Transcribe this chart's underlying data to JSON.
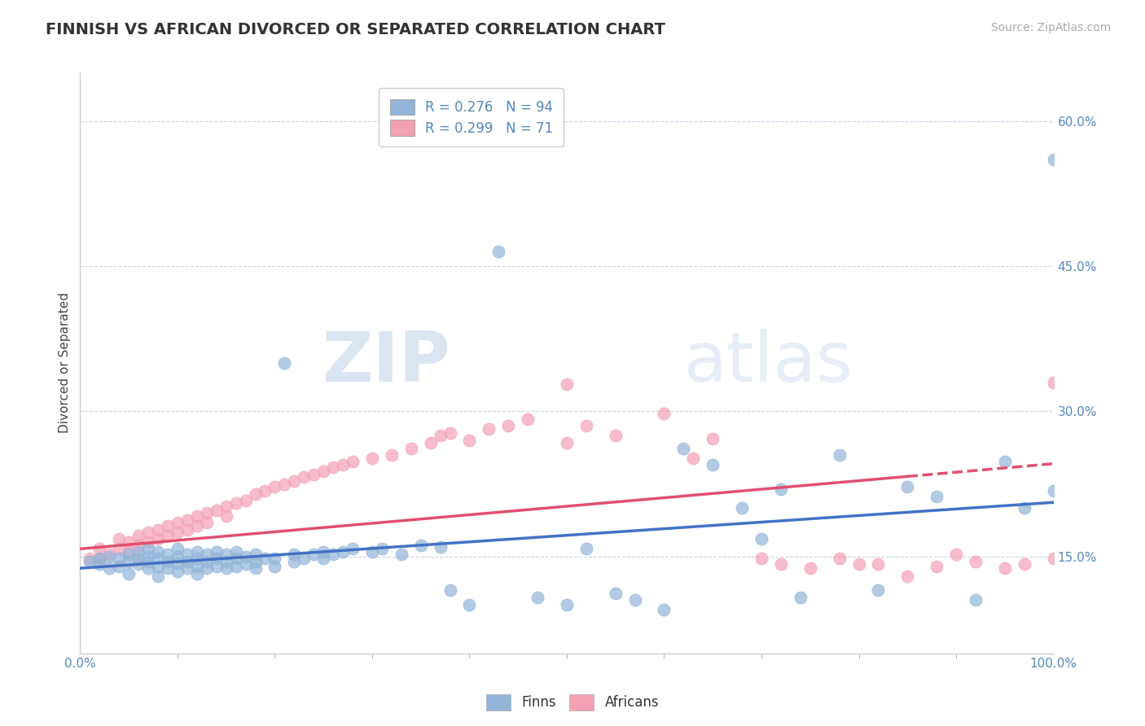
{
  "title": "FINNISH VS AFRICAN DIVORCED OR SEPARATED CORRELATION CHART",
  "source_text": "Source: ZipAtlas.com",
  "ylabel": "Divorced or Separated",
  "xlabel": "",
  "xlim": [
    0.0,
    1.0
  ],
  "ylim": [
    0.05,
    0.65
  ],
  "xtick_labels": [
    "0.0%",
    "100.0%"
  ],
  "ytick_labels": [
    "15.0%",
    "30.0%",
    "45.0%",
    "60.0%"
  ],
  "ytick_values": [
    0.15,
    0.3,
    0.45,
    0.6
  ],
  "legend_finns": "R = 0.276   N = 94",
  "legend_africans": "R = 0.299   N = 71",
  "finns_color": "#92b4d8",
  "africans_color": "#f4a0b5",
  "finns_line_color": "#4472c4",
  "africans_line_color": "#e05070",
  "background_color": "#ffffff",
  "grid_color": "#c8d4e8",
  "watermark_zip": "ZIP",
  "watermark_atlas": "atlas",
  "finns_x": [
    0.01,
    0.02,
    0.02,
    0.03,
    0.03,
    0.04,
    0.04,
    0.05,
    0.05,
    0.05,
    0.06,
    0.06,
    0.06,
    0.07,
    0.07,
    0.07,
    0.07,
    0.08,
    0.08,
    0.08,
    0.08,
    0.09,
    0.09,
    0.09,
    0.1,
    0.1,
    0.1,
    0.1,
    0.11,
    0.11,
    0.11,
    0.12,
    0.12,
    0.12,
    0.12,
    0.13,
    0.13,
    0.13,
    0.14,
    0.14,
    0.14,
    0.15,
    0.15,
    0.15,
    0.16,
    0.16,
    0.16,
    0.17,
    0.17,
    0.18,
    0.18,
    0.18,
    0.19,
    0.2,
    0.2,
    0.21,
    0.22,
    0.22,
    0.23,
    0.24,
    0.25,
    0.25,
    0.26,
    0.27,
    0.28,
    0.3,
    0.31,
    0.33,
    0.35,
    0.37,
    0.38,
    0.4,
    0.43,
    0.47,
    0.5,
    0.52,
    0.55,
    0.57,
    0.6,
    0.62,
    0.65,
    0.68,
    0.7,
    0.72,
    0.74,
    0.78,
    0.82,
    0.85,
    0.88,
    0.92,
    0.95,
    0.97,
    1.0,
    1.0
  ],
  "finns_y": [
    0.145,
    0.142,
    0.148,
    0.138,
    0.15,
    0.14,
    0.148,
    0.132,
    0.145,
    0.152,
    0.142,
    0.148,
    0.155,
    0.138,
    0.145,
    0.15,
    0.158,
    0.13,
    0.14,
    0.148,
    0.155,
    0.138,
    0.145,
    0.152,
    0.135,
    0.143,
    0.15,
    0.158,
    0.138,
    0.145,
    0.152,
    0.132,
    0.14,
    0.148,
    0.155,
    0.138,
    0.145,
    0.152,
    0.14,
    0.148,
    0.155,
    0.138,
    0.145,
    0.152,
    0.14,
    0.148,
    0.155,
    0.142,
    0.15,
    0.138,
    0.145,
    0.152,
    0.148,
    0.14,
    0.148,
    0.35,
    0.145,
    0.152,
    0.148,
    0.152,
    0.148,
    0.155,
    0.152,
    0.155,
    0.158,
    0.155,
    0.158,
    0.152,
    0.162,
    0.16,
    0.115,
    0.1,
    0.465,
    0.108,
    0.1,
    0.158,
    0.112,
    0.105,
    0.095,
    0.262,
    0.245,
    0.2,
    0.168,
    0.22,
    0.108,
    0.255,
    0.115,
    0.222,
    0.212,
    0.105,
    0.248,
    0.2,
    0.56,
    0.218
  ],
  "africans_x": [
    0.01,
    0.02,
    0.02,
    0.03,
    0.04,
    0.04,
    0.05,
    0.05,
    0.06,
    0.06,
    0.07,
    0.07,
    0.08,
    0.08,
    0.09,
    0.09,
    0.1,
    0.1,
    0.11,
    0.11,
    0.12,
    0.12,
    0.13,
    0.13,
    0.14,
    0.15,
    0.15,
    0.16,
    0.17,
    0.18,
    0.19,
    0.2,
    0.21,
    0.22,
    0.23,
    0.24,
    0.25,
    0.26,
    0.27,
    0.28,
    0.3,
    0.32,
    0.34,
    0.36,
    0.37,
    0.38,
    0.4,
    0.42,
    0.44,
    0.46,
    0.5,
    0.52,
    0.55,
    0.6,
    0.63,
    0.65,
    0.7,
    0.72,
    0.75,
    0.78,
    0.82,
    0.85,
    0.88,
    0.9,
    0.92,
    0.95,
    0.97,
    1.0,
    1.0,
    0.5,
    0.8
  ],
  "africans_y": [
    0.148,
    0.148,
    0.158,
    0.152,
    0.158,
    0.168,
    0.155,
    0.165,
    0.162,
    0.172,
    0.165,
    0.175,
    0.168,
    0.178,
    0.172,
    0.182,
    0.175,
    0.185,
    0.178,
    0.188,
    0.182,
    0.192,
    0.185,
    0.195,
    0.198,
    0.192,
    0.202,
    0.205,
    0.208,
    0.215,
    0.218,
    0.222,
    0.225,
    0.228,
    0.232,
    0.235,
    0.238,
    0.242,
    0.245,
    0.248,
    0.252,
    0.255,
    0.262,
    0.268,
    0.275,
    0.278,
    0.27,
    0.282,
    0.285,
    0.292,
    0.268,
    0.285,
    0.275,
    0.298,
    0.252,
    0.272,
    0.148,
    0.142,
    0.138,
    0.148,
    0.142,
    0.13,
    0.14,
    0.152,
    0.145,
    0.138,
    0.142,
    0.33,
    0.148,
    0.328,
    0.142
  ],
  "finns_slope": 0.068,
  "finns_intercept": 0.138,
  "africans_slope": 0.088,
  "africans_intercept": 0.158,
  "title_fontsize": 14,
  "axis_label_fontsize": 11,
  "tick_fontsize": 11,
  "legend_fontsize": 12,
  "source_fontsize": 10
}
